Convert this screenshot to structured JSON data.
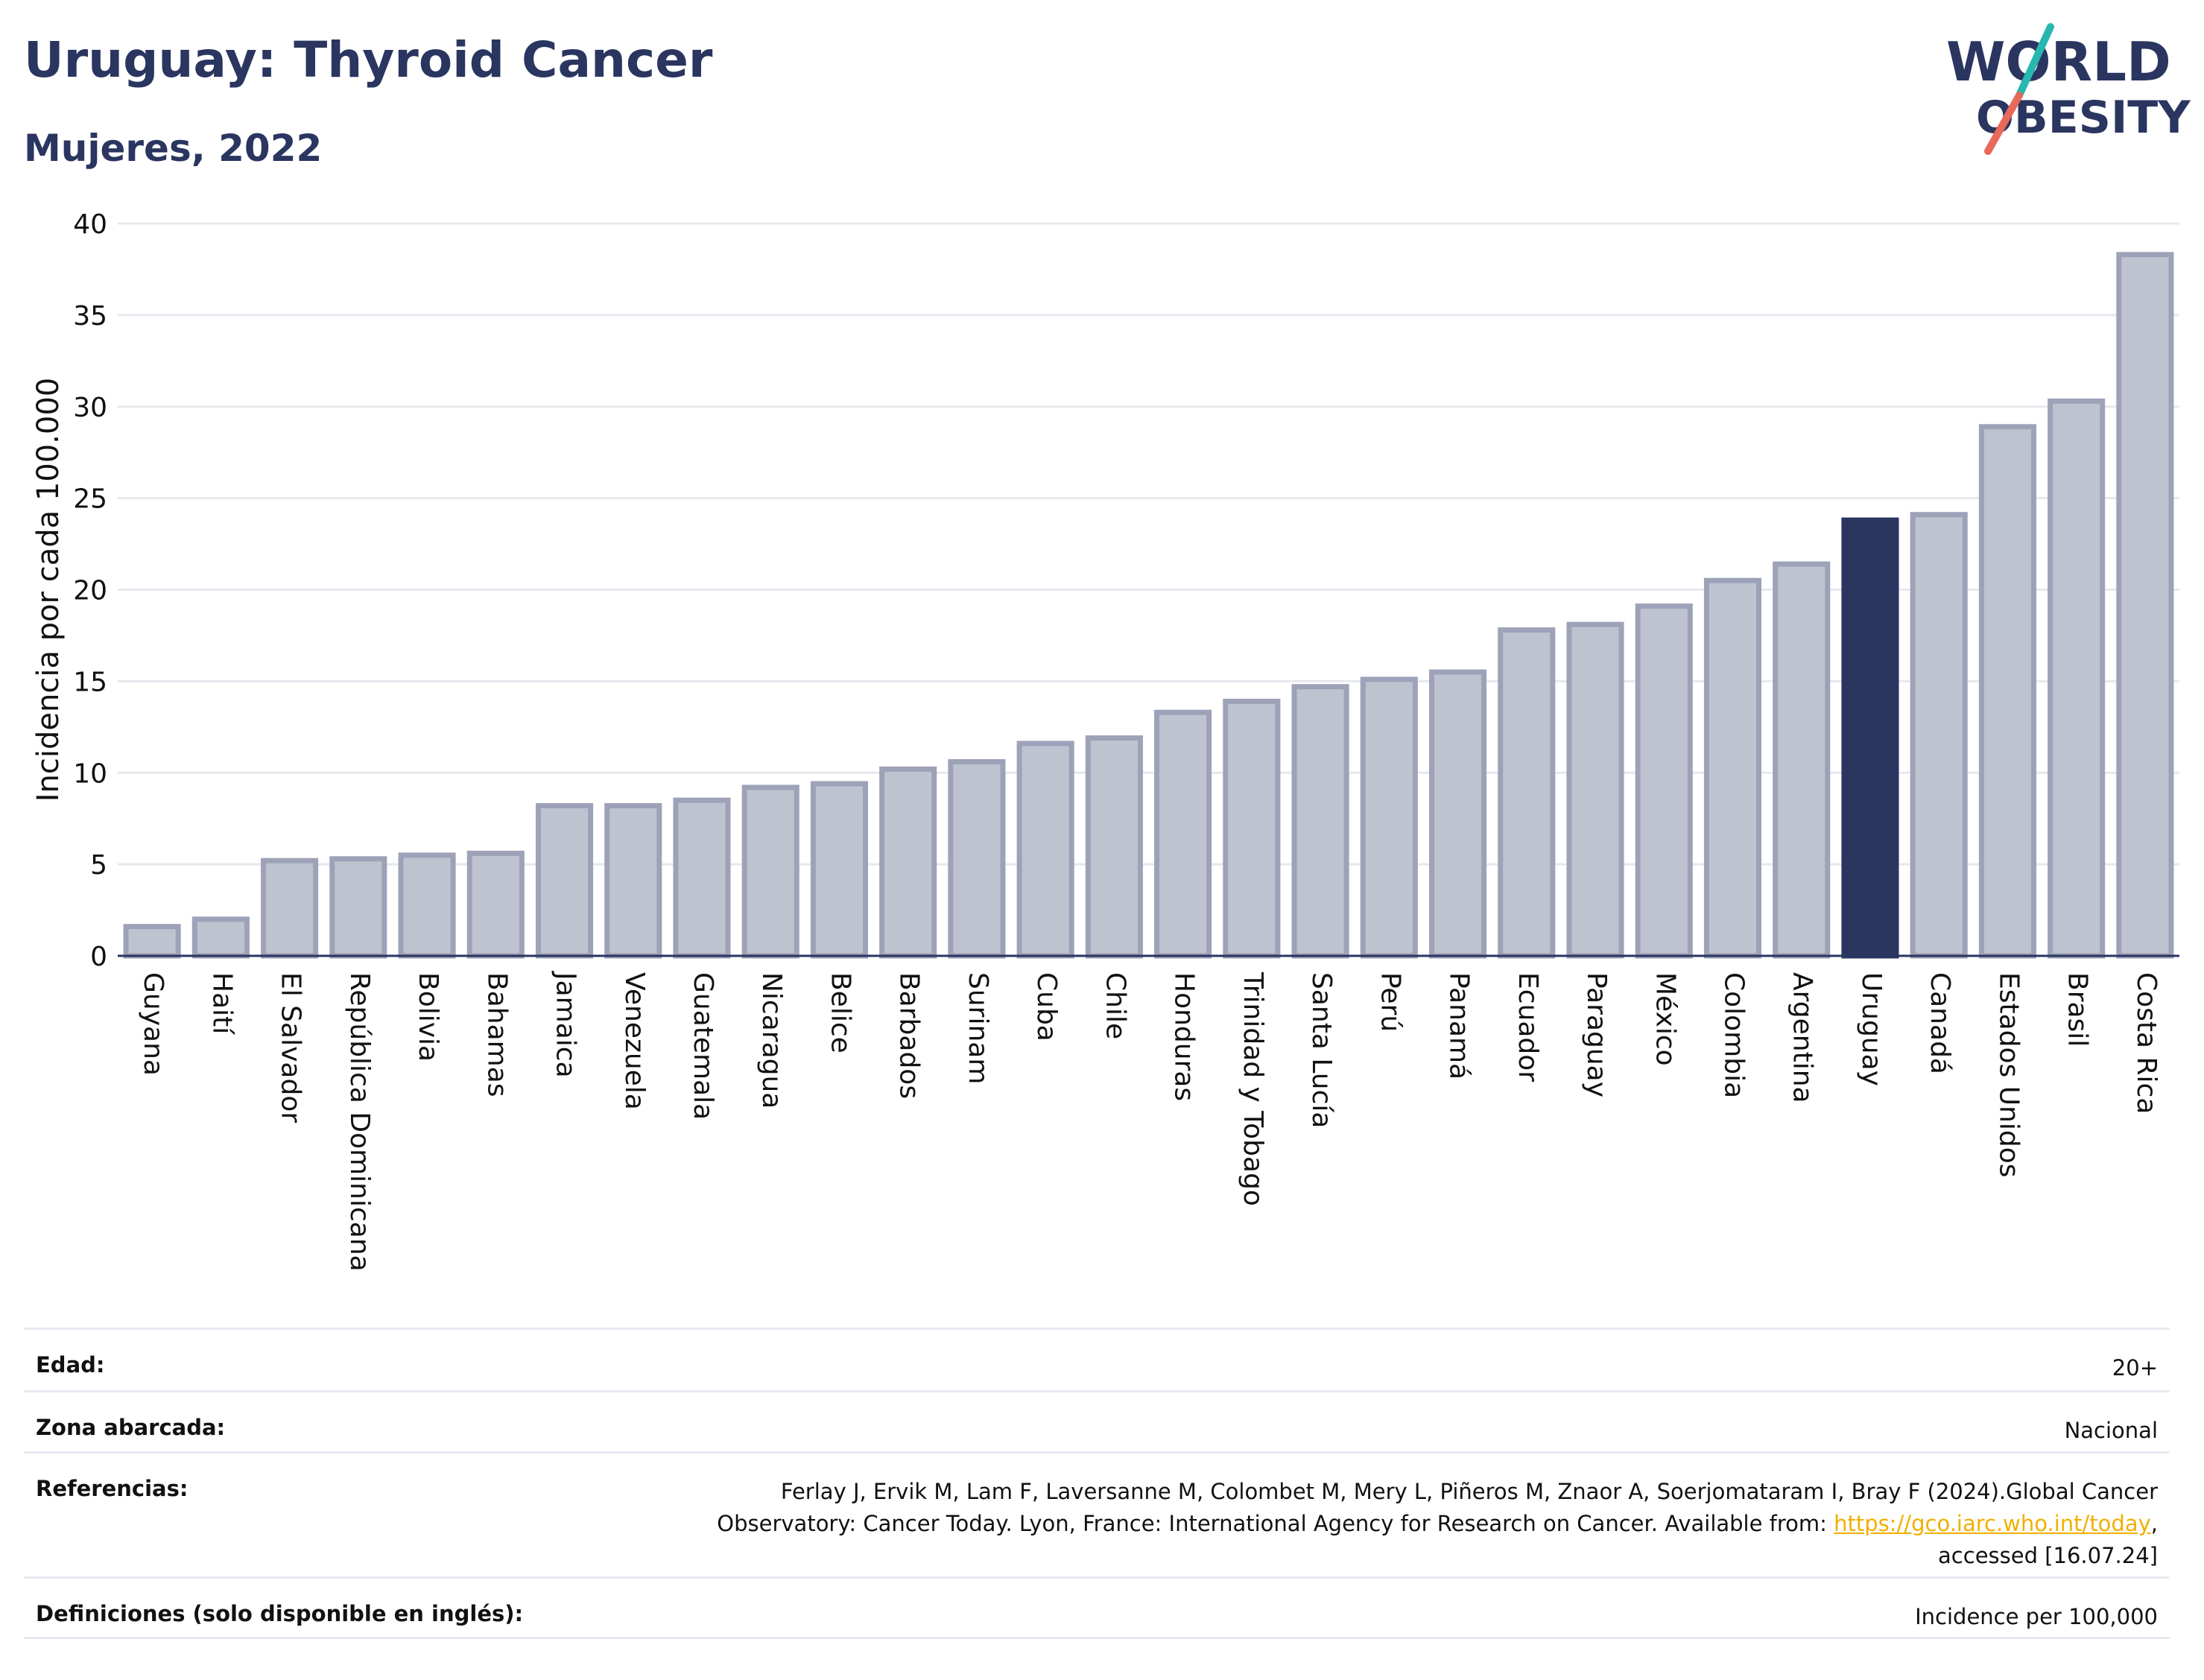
{
  "header": {
    "title": "Uruguay: Thyroid Cancer",
    "subtitle": "Mujeres, 2022",
    "logo_line1": "WORLD",
    "logo_line2": "OBESITY"
  },
  "chart_data": {
    "type": "bar",
    "title": "Uruguay: Thyroid Cancer",
    "subtitle": "Mujeres, 2022",
    "ylabel": "Incidencia por cada 100.000",
    "xlabel": "",
    "ylim": [
      0,
      40
    ],
    "yticks": [
      0,
      5,
      10,
      15,
      20,
      25,
      30,
      35,
      40
    ],
    "grid": true,
    "highlight": "Uruguay",
    "categories": [
      "Guyana",
      "Haití",
      "El Salvador",
      "República Dominicana",
      "Bolivia",
      "Bahamas",
      "Jamaica",
      "Venezuela",
      "Guatemala",
      "Nicaragua",
      "Belice",
      "Barbados",
      "Surinam",
      "Cuba",
      "Chile",
      "Honduras",
      "Trinidad y Tobago",
      "Santa Lucía",
      "Perú",
      "Panamá",
      "Ecuador",
      "Paraguay",
      "México",
      "Colombia",
      "Argentina",
      "Uruguay",
      "Canadá",
      "Estados Unidos",
      "Brasil",
      "Costa Rica"
    ],
    "values": [
      1.6,
      2.0,
      5.2,
      5.3,
      5.5,
      5.6,
      8.2,
      8.2,
      8.5,
      9.2,
      9.4,
      10.2,
      10.6,
      11.6,
      11.9,
      13.3,
      13.9,
      14.7,
      15.1,
      15.5,
      17.8,
      18.1,
      19.1,
      20.5,
      21.4,
      23.8,
      24.1,
      28.9,
      30.3,
      38.3
    ],
    "colors": {
      "bar": "#bfc3d0",
      "bar_border": "#9da2b8",
      "highlight": "#2a3560"
    }
  },
  "info": {
    "age_label": "Edad:",
    "age_value": "20+",
    "area_label": "Zona abarcada:",
    "area_value": "Nacional",
    "ref_label": "Referencias:",
    "ref_text_1": "Ferlay J, Ervik M, Lam F, Laversanne M, Colombet M, Mery L, Piñeros M, Znaor A, Soerjomataram I, Bray F (2024).Global Cancer",
    "ref_text_2": "Observatory: Cancer Today. Lyon, France: International Agency for Research on Cancer. Available from: ",
    "ref_link": "https://gco.iarc.who.int/today",
    "ref_text_3": ",",
    "ref_text_4": "accessed [16.07.24]",
    "def_label": "Definiciones (solo disponible en inglés):",
    "def_value": "Incidence per 100,000"
  }
}
